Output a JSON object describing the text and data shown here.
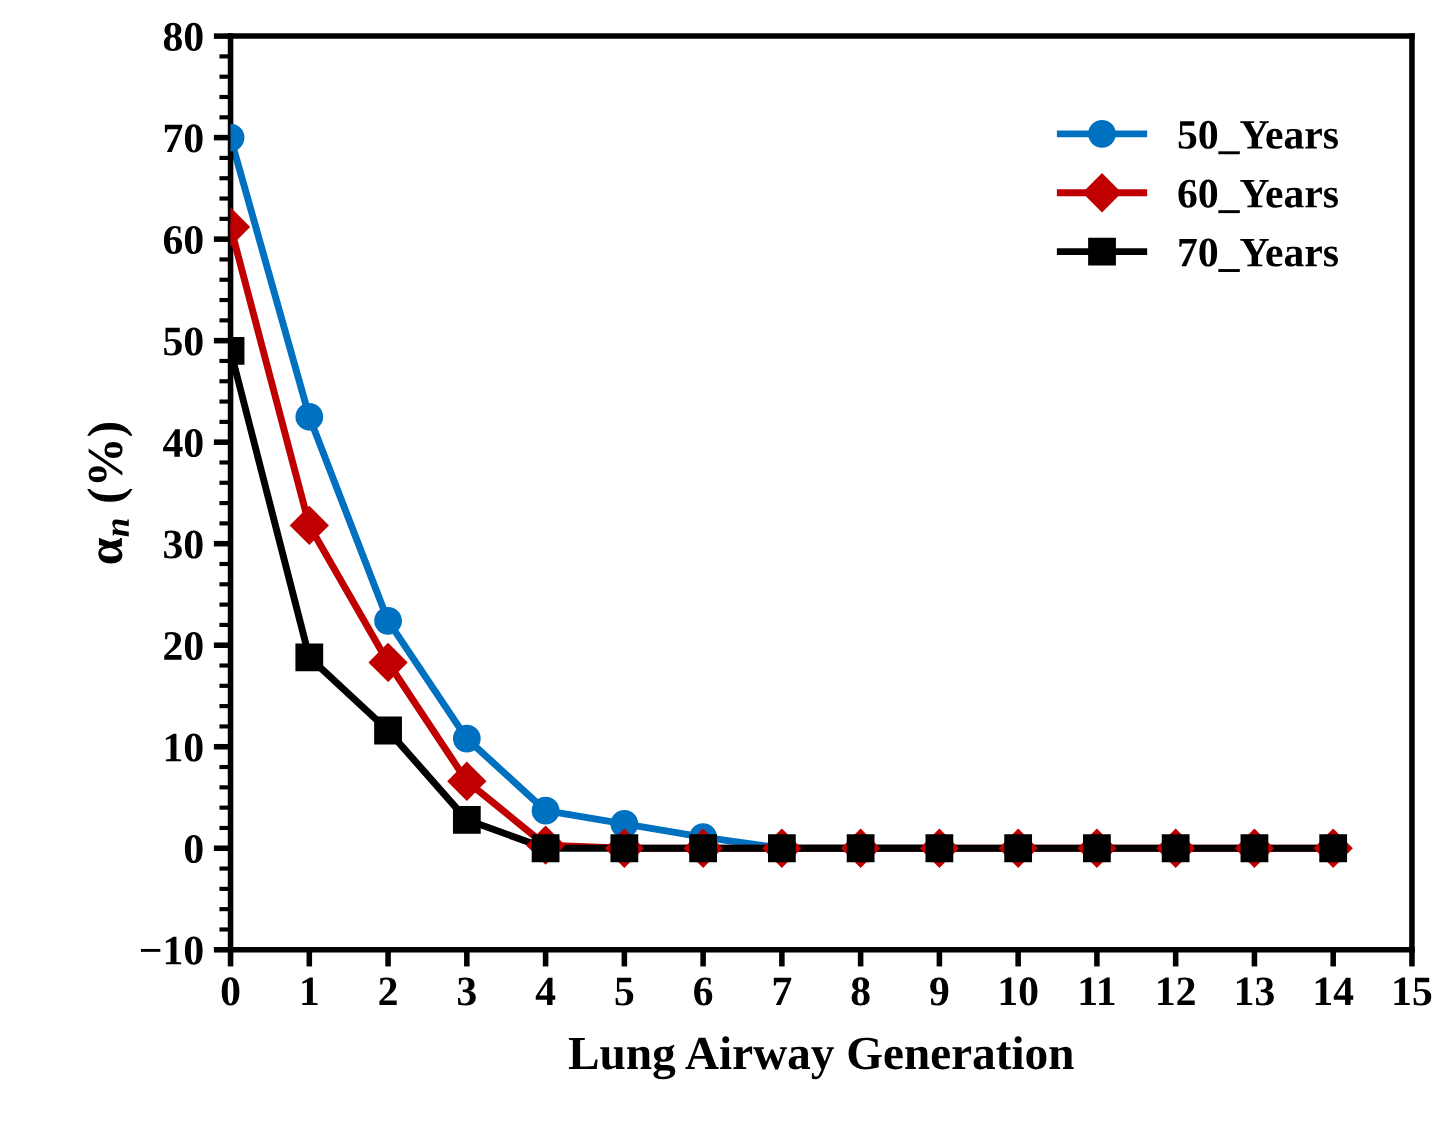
{
  "chart_data": {
    "type": "line",
    "xlabel": "Lung Airway Generation",
    "ylabel": "α$_{n}$ (%)",
    "x": [
      0,
      1,
      2,
      3,
      4,
      5,
      6,
      7,
      8,
      9,
      10,
      11,
      12,
      13,
      14
    ],
    "series": [
      {
        "name": "50_Years",
        "color": "#0070c0",
        "marker": "circle",
        "values": [
          70.0,
          42.5,
          22.4,
          10.8,
          3.7,
          2.4,
          1.1,
          0,
          0,
          0,
          null,
          null,
          null,
          null,
          null
        ]
      },
      {
        "name": "60_Years",
        "color": "#c00000",
        "marker": "diamond",
        "values": [
          61.2,
          31.8,
          18.3,
          6.6,
          0.3,
          0,
          0,
          0,
          0,
          0,
          0,
          0,
          0,
          0,
          0
        ]
      },
      {
        "name": "70_Years",
        "color": "#000000",
        "marker": "square",
        "values": [
          49.0,
          18.8,
          11.6,
          2.8,
          0,
          0,
          0,
          0,
          0,
          0,
          0,
          0,
          0,
          0,
          0
        ]
      }
    ],
    "xlim": [
      0,
      15
    ],
    "xticks": [
      0,
      1,
      2,
      3,
      4,
      5,
      6,
      7,
      8,
      9,
      10,
      11,
      12,
      13,
      14,
      15
    ],
    "ylim": [
      -10,
      80
    ],
    "yticks": [
      -10,
      0,
      10,
      20,
      30,
      40,
      50,
      60,
      70,
      80
    ],
    "legend": "top right",
    "grid": false
  }
}
